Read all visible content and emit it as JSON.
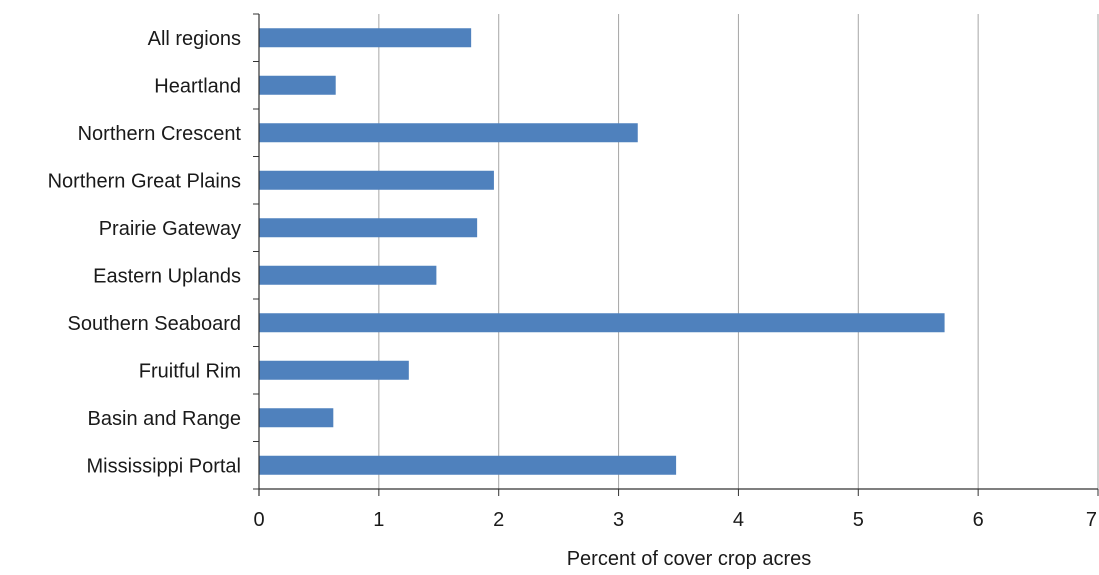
{
  "chart_data": {
    "type": "bar",
    "orientation": "horizontal",
    "categories": [
      "All regions",
      "Heartland",
      "Northern Crescent",
      "Northern Great Plains",
      "Prairie Gateway",
      "Eastern Uplands",
      "Southern Seaboard",
      "Fruitful Rim",
      "Basin and Range",
      "Mississippi Portal"
    ],
    "values": [
      1.77,
      0.64,
      3.16,
      1.96,
      1.82,
      1.48,
      5.72,
      1.25,
      0.62,
      3.48
    ],
    "xlabel": "Percent of cover crop acres",
    "ylabel": "",
    "xlim": [
      0,
      7
    ],
    "xticks": [
      "0",
      "1",
      "2",
      "3",
      "4",
      "5",
      "6",
      "7"
    ],
    "grid": "vertical",
    "bar_color": "#4f81bd",
    "grid_color": "#a6a6a6",
    "axis_color": "#333333"
  }
}
